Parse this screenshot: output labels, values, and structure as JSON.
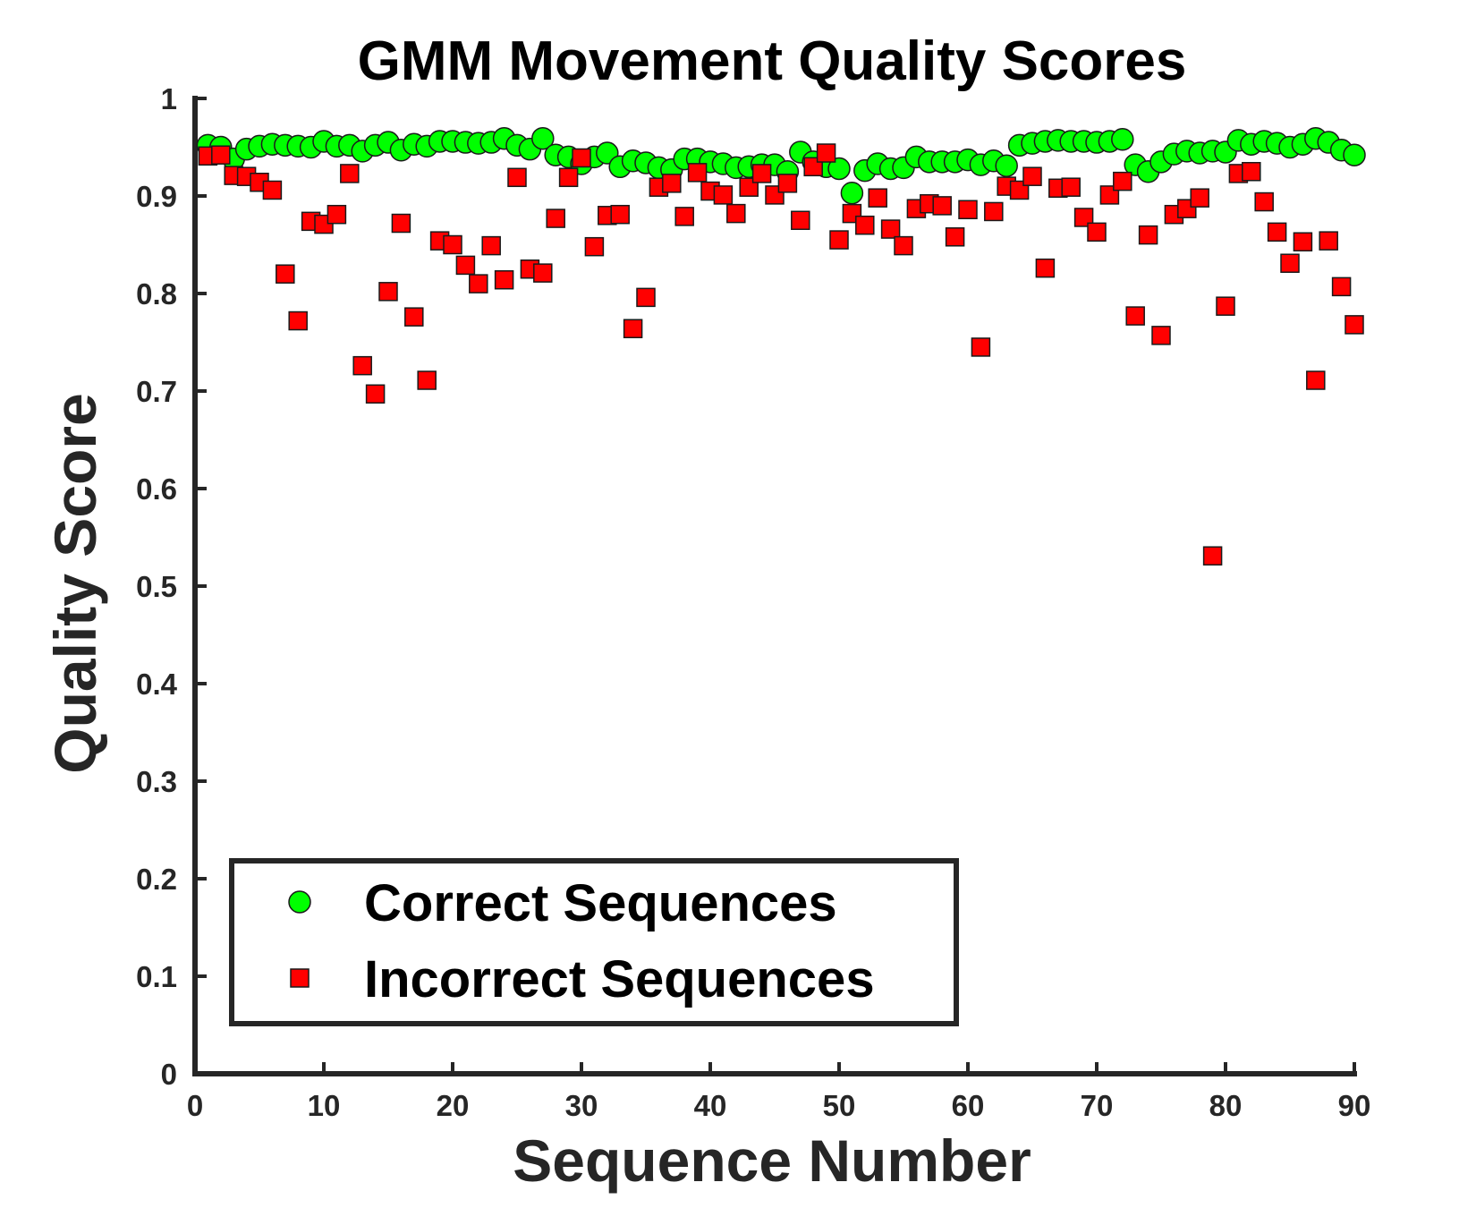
{
  "chart_data": {
    "type": "scatter",
    "title": "GMM Movement Quality Scores",
    "xlabel": "Sequence Number",
    "ylabel": "Quality Score",
    "xlim": [
      0,
      90
    ],
    "ylim": [
      0,
      1
    ],
    "xticks": [
      "0",
      "10",
      "20",
      "30",
      "40",
      "50",
      "60",
      "70",
      "80",
      "90"
    ],
    "yticks": [
      "0",
      "0.1",
      "0.2",
      "0.3",
      "0.4",
      "0.5",
      "0.6",
      "0.7",
      "0.8",
      "0.9",
      "1"
    ],
    "grid": false,
    "legend_position": "bottom-left",
    "series": [
      {
        "name": "Correct Sequences",
        "marker": "circle",
        "color": "#00ff00",
        "x": [
          1,
          2,
          3,
          4,
          5,
          6,
          7,
          8,
          9,
          10,
          11,
          12,
          13,
          14,
          15,
          16,
          17,
          18,
          19,
          20,
          21,
          22,
          23,
          24,
          25,
          26,
          27,
          28,
          29,
          30,
          31,
          32,
          33,
          34,
          35,
          36,
          37,
          38,
          39,
          40,
          41,
          42,
          43,
          44,
          45,
          46,
          47,
          48,
          49,
          50,
          51,
          52,
          53,
          54,
          55,
          56,
          57,
          58,
          59,
          60,
          61,
          62,
          63,
          64,
          65,
          66,
          67,
          68,
          69,
          70,
          71,
          72,
          73,
          74,
          75,
          76,
          77,
          78,
          79,
          80,
          81,
          82,
          83,
          84,
          85,
          86,
          87,
          88,
          89,
          90
        ],
        "y": [
          0.952,
          0.95,
          0.938,
          0.948,
          0.951,
          0.953,
          0.952,
          0.951,
          0.95,
          0.956,
          0.951,
          0.952,
          0.946,
          0.952,
          0.955,
          0.947,
          0.953,
          0.951,
          0.956,
          0.956,
          0.955,
          0.954,
          0.955,
          0.959,
          0.952,
          0.948,
          0.959,
          0.942,
          0.94,
          0.933,
          0.94,
          0.944,
          0.93,
          0.936,
          0.934,
          0.929,
          0.927,
          0.938,
          0.938,
          0.935,
          0.933,
          0.929,
          0.93,
          0.932,
          0.932,
          0.925,
          0.945,
          0.935,
          0.93,
          0.928,
          0.903,
          0.926,
          0.933,
          0.928,
          0.929,
          0.94,
          0.935,
          0.935,
          0.935,
          0.937,
          0.932,
          0.936,
          0.931,
          0.952,
          0.954,
          0.956,
          0.957,
          0.956,
          0.956,
          0.955,
          0.956,
          0.958,
          0.932,
          0.925,
          0.935,
          0.943,
          0.946,
          0.944,
          0.946,
          0.945,
          0.957,
          0.953,
          0.956,
          0.954,
          0.95,
          0.953,
          0.959,
          0.955,
          0.947,
          0.942
        ]
      },
      {
        "name": "Incorrect Sequences",
        "marker": "square",
        "color": "#ff0000",
        "x": [
          1,
          2,
          3,
          4,
          5,
          6,
          7,
          8,
          9,
          10,
          11,
          12,
          13,
          14,
          15,
          16,
          17,
          18,
          19,
          20,
          21,
          22,
          23,
          24,
          25,
          26,
          27,
          28,
          29,
          30,
          31,
          32,
          33,
          34,
          35,
          36,
          37,
          38,
          39,
          40,
          41,
          42,
          43,
          44,
          45,
          46,
          47,
          48,
          49,
          50,
          51,
          52,
          53,
          54,
          55,
          56,
          57,
          58,
          59,
          60,
          61,
          62,
          63,
          64,
          65,
          66,
          67,
          68,
          69,
          70,
          71,
          72,
          73,
          74,
          75,
          76,
          77,
          78,
          79,
          80,
          81,
          82,
          83,
          84,
          85,
          86,
          87,
          88,
          89,
          90
        ],
        "y": [
          0.941,
          0.942,
          0.921,
          0.92,
          0.914,
          0.906,
          0.82,
          0.772,
          0.874,
          0.871,
          0.881,
          0.923,
          0.726,
          0.697,
          0.802,
          0.872,
          0.776,
          0.711,
          0.854,
          0.85,
          0.829,
          0.81,
          0.849,
          0.814,
          0.919,
          0.825,
          0.821,
          0.877,
          0.919,
          0.939,
          0.848,
          0.88,
          0.881,
          0.764,
          0.796,
          0.909,
          0.913,
          0.879,
          0.924,
          0.905,
          0.901,
          0.882,
          0.909,
          0.923,
          0.901,
          0.913,
          0.875,
          0.93,
          0.944,
          0.855,
          0.882,
          0.87,
          0.898,
          0.866,
          0.849,
          0.887,
          0.892,
          0.89,
          0.858,
          0.886,
          0.745,
          0.884,
          0.91,
          0.906,
          0.92,
          0.826,
          0.908,
          0.909,
          0.878,
          0.863,
          0.901,
          0.915,
          0.777,
          0.86,
          0.757,
          0.881,
          0.887,
          0.898,
          0.531,
          0.787,
          0.923,
          0.925,
          0.894,
          0.863,
          0.831,
          0.853,
          0.711,
          0.854,
          0.807,
          0.768
        ]
      }
    ]
  }
}
